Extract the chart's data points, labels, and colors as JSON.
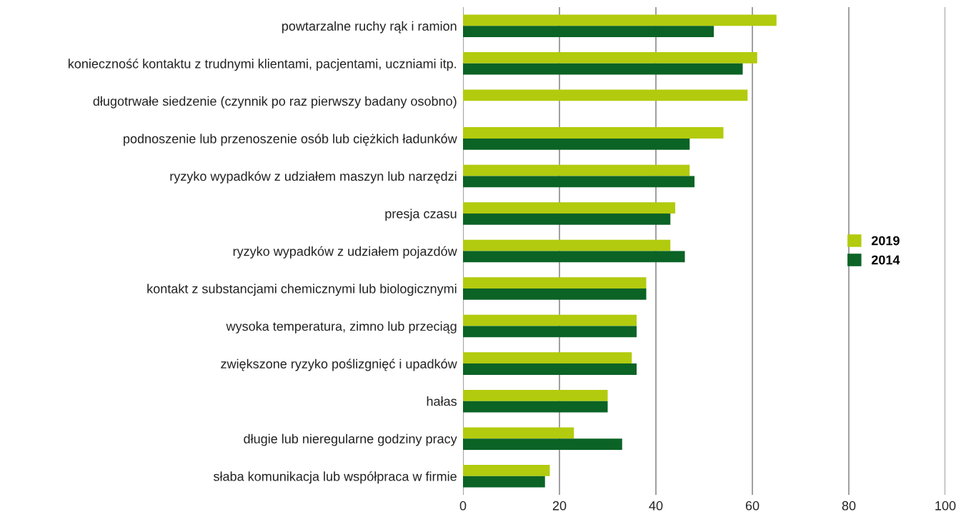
{
  "chart_data": {
    "type": "bar",
    "orientation": "horizontal",
    "categories": [
      "powtarzalne ruchy rąk i ramion",
      "konieczność kontaktu z trudnymi klientami, pacjentami, uczniami itp.",
      "długotrwałe siedzenie (czynnik po raz pierwszy badany osobno)",
      "podnoszenie lub przenoszenie osób lub ciężkich ładunków",
      "ryzyko wypadków z udziałem maszyn lub narzędzi",
      "presja czasu",
      "ryzyko wypadków z udziałem pojazdów",
      "kontakt z substancjami chemicznymi lub biologicznymi",
      "wysoka temperatura, zimno lub przeciąg",
      "zwiększone ryzyko poślizgnięć i upadków",
      "hałas",
      "długie lub nieregularne godziny pracy",
      "słaba komunikacja lub współpraca w firmie"
    ],
    "series": [
      {
        "name": "2019",
        "color": "#b2cb0e",
        "values": [
          65,
          61,
          59,
          54,
          47,
          44,
          43,
          38,
          36,
          35,
          30,
          23,
          18
        ]
      },
      {
        "name": "2014",
        "color": "#0b6325",
        "values": [
          52,
          58,
          null,
          47,
          48,
          43,
          46,
          38,
          36,
          36,
          30,
          33,
          17
        ]
      }
    ],
    "xlim": [
      0,
      100
    ],
    "xticks": [
      0,
      20,
      40,
      60,
      80,
      100
    ],
    "grid": "x",
    "legend": "right"
  }
}
